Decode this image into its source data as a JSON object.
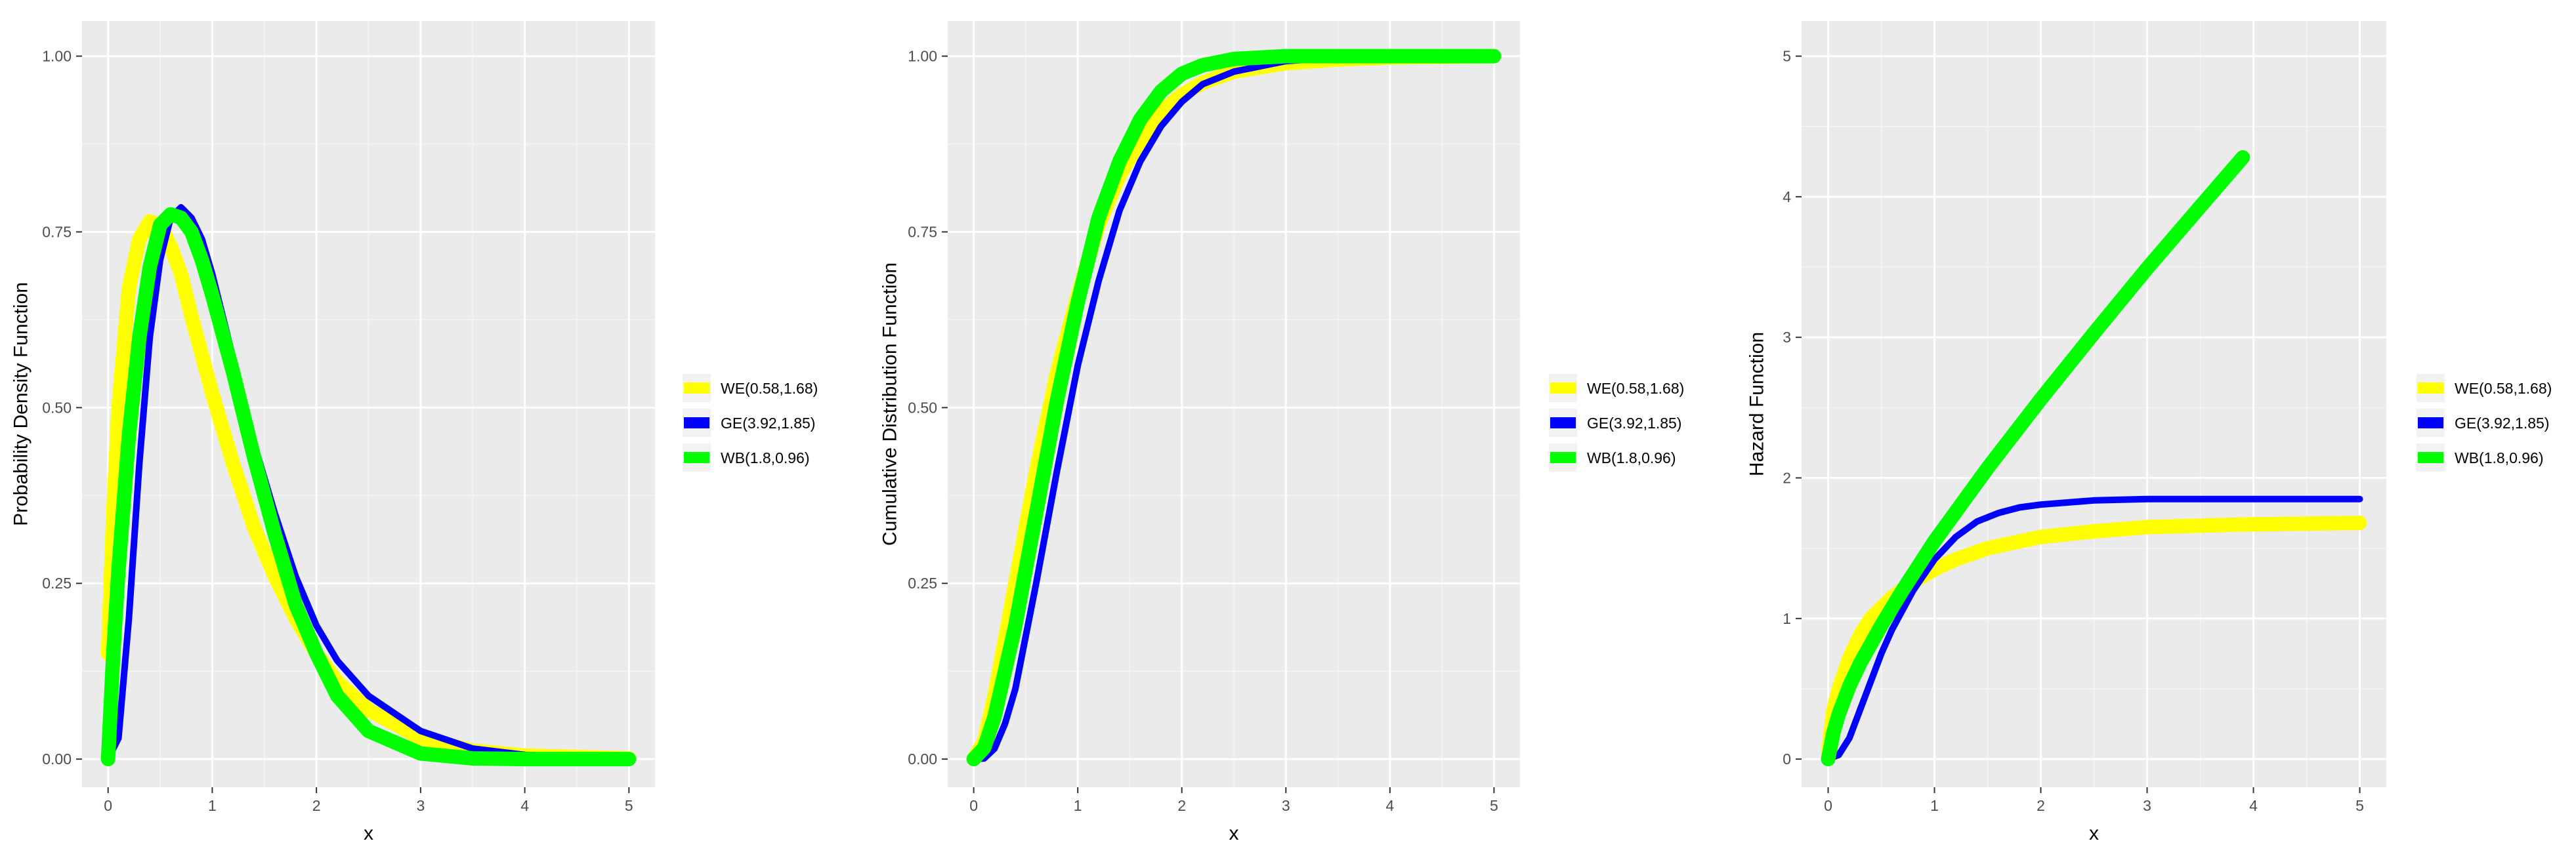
{
  "colors": {
    "panel_bg": "#ebebeb",
    "grid_major": "#ffffff",
    "grid_minor": "#f5f5f5",
    "tick": "#333333"
  },
  "legend": {
    "items": [
      {
        "label": "WE(0.58,1.68)",
        "color": "#ffff00"
      },
      {
        "label": "GE(3.92,1.85)",
        "color": "#0000ff"
      },
      {
        "label": "WB(1.8,0.96)",
        "color": "#00ff00"
      }
    ]
  },
  "chart_data": [
    {
      "type": "line",
      "xlabel": "x",
      "ylabel": "Probability Density Function",
      "xlim": [
        -0.25,
        5.25
      ],
      "ylim": [
        -0.04,
        1.05
      ],
      "xticks": [
        0,
        1,
        2,
        3,
        4,
        5
      ],
      "xtick_labels": [
        "0",
        "1",
        "2",
        "3",
        "4",
        "5"
      ],
      "yticks": [
        0,
        0.25,
        0.5,
        0.75,
        1
      ],
      "ytick_labels": [
        "0.00",
        "0.25",
        "0.50",
        "0.75",
        "1.00"
      ],
      "grid": true,
      "legend_position": "right",
      "series": [
        {
          "name": "WE(0.58,1.68)",
          "color": "#ffff00",
          "x": [
            0,
            0.05,
            0.1,
            0.2,
            0.3,
            0.4,
            0.5,
            0.6,
            0.7,
            0.8,
            1,
            1.2,
            1.4,
            1.6,
            1.8,
            2,
            2.2,
            2.5,
            3,
            3.5,
            4,
            5
          ],
          "y": [
            0.15,
            0.35,
            0.5,
            0.67,
            0.74,
            0.765,
            0.76,
            0.73,
            0.69,
            0.63,
            0.52,
            0.42,
            0.33,
            0.26,
            0.2,
            0.15,
            0.11,
            0.07,
            0.03,
            0.012,
            0.005,
            0.001
          ]
        },
        {
          "name": "GE(3.92,1.85)",
          "color": "#0000ff",
          "x": [
            0,
            0.1,
            0.2,
            0.3,
            0.4,
            0.5,
            0.6,
            0.7,
            0.8,
            0.9,
            1,
            1.2,
            1.4,
            1.6,
            1.8,
            2,
            2.2,
            2.5,
            3,
            3.5,
            4,
            5
          ],
          "y": [
            0,
            0.03,
            0.2,
            0.42,
            0.6,
            0.71,
            0.77,
            0.785,
            0.77,
            0.74,
            0.69,
            0.57,
            0.45,
            0.35,
            0.26,
            0.19,
            0.14,
            0.09,
            0.04,
            0.015,
            0.006,
            0.001
          ]
        },
        {
          "name": "WB(1.8,0.96)",
          "color": "#00ff00",
          "x": [
            0,
            0.05,
            0.1,
            0.2,
            0.3,
            0.4,
            0.5,
            0.6,
            0.7,
            0.8,
            0.9,
            1,
            1.2,
            1.4,
            1.6,
            1.8,
            2,
            2.2,
            2.5,
            3,
            3.5,
            4,
            5
          ],
          "y": [
            0,
            0.15,
            0.27,
            0.46,
            0.6,
            0.7,
            0.76,
            0.775,
            0.77,
            0.75,
            0.71,
            0.66,
            0.55,
            0.43,
            0.32,
            0.22,
            0.15,
            0.09,
            0.04,
            0.008,
            0.001,
            0,
            0
          ]
        }
      ]
    },
    {
      "type": "line",
      "xlabel": "x",
      "ylabel": "Cumulative Distribution Function",
      "xlim": [
        -0.25,
        5.25
      ],
      "ylim": [
        -0.04,
        1.05
      ],
      "xticks": [
        0,
        1,
        2,
        3,
        4,
        5
      ],
      "xtick_labels": [
        "0",
        "1",
        "2",
        "3",
        "4",
        "5"
      ],
      "yticks": [
        0,
        0.25,
        0.5,
        0.75,
        1
      ],
      "ytick_labels": [
        "0.00",
        "0.25",
        "0.50",
        "0.75",
        "1.00"
      ],
      "grid": true,
      "legend_position": "right",
      "series": [
        {
          "name": "WE(0.58,1.68)",
          "color": "#ffff00",
          "x": [
            0,
            0.1,
            0.2,
            0.4,
            0.6,
            0.8,
            1,
            1.2,
            1.4,
            1.6,
            1.8,
            2,
            2.2,
            2.5,
            3,
            3.5,
            4,
            5
          ],
          "y": [
            0,
            0.025,
            0.09,
            0.25,
            0.41,
            0.55,
            0.66,
            0.76,
            0.83,
            0.88,
            0.92,
            0.945,
            0.962,
            0.978,
            0.99,
            0.995,
            0.998,
            1
          ]
        },
        {
          "name": "GE(3.92,1.85)",
          "color": "#0000ff",
          "x": [
            0,
            0.1,
            0.2,
            0.3,
            0.4,
            0.6,
            0.8,
            1,
            1.2,
            1.4,
            1.6,
            1.8,
            2,
            2.2,
            2.5,
            3,
            3.5,
            4,
            5
          ],
          "y": [
            0,
            0.001,
            0.015,
            0.05,
            0.1,
            0.25,
            0.41,
            0.56,
            0.68,
            0.78,
            0.85,
            0.9,
            0.935,
            0.96,
            0.978,
            0.993,
            0.998,
            1,
            1
          ]
        },
        {
          "name": "WB(1.8,0.96)",
          "color": "#00ff00",
          "x": [
            0,
            0.1,
            0.2,
            0.4,
            0.6,
            0.8,
            1,
            1.2,
            1.4,
            1.6,
            1.8,
            2,
            2.2,
            2.5,
            3,
            3.5,
            4,
            5
          ],
          "y": [
            0,
            0.016,
            0.06,
            0.19,
            0.35,
            0.51,
            0.65,
            0.77,
            0.85,
            0.91,
            0.95,
            0.975,
            0.987,
            0.996,
            1,
            1,
            1,
            1
          ]
        }
      ]
    },
    {
      "type": "line",
      "xlabel": "x",
      "ylabel": "Hazard Function",
      "xlim": [
        -0.25,
        5.25
      ],
      "ylim": [
        -0.2,
        5.25
      ],
      "xticks": [
        0,
        1,
        2,
        3,
        4,
        5
      ],
      "xtick_labels": [
        "0",
        "1",
        "2",
        "3",
        "4",
        "5"
      ],
      "yticks": [
        0,
        1,
        2,
        3,
        4,
        5
      ],
      "ytick_labels": [
        "0",
        "1",
        "2",
        "3",
        "4",
        "5"
      ],
      "grid": true,
      "legend_position": "right",
      "series": [
        {
          "name": "WE(0.58,1.68)",
          "color": "#ffff00",
          "x": [
            0,
            0.05,
            0.1,
            0.2,
            0.3,
            0.4,
            0.6,
            0.8,
            1,
            1.2,
            1.5,
            2,
            2.5,
            3,
            4,
            5
          ],
          "y": [
            0.05,
            0.35,
            0.5,
            0.72,
            0.88,
            1,
            1.15,
            1.26,
            1.35,
            1.42,
            1.5,
            1.58,
            1.62,
            1.65,
            1.67,
            1.68
          ]
        },
        {
          "name": "GE(3.92,1.85)",
          "color": "#0000ff",
          "x": [
            0,
            0.1,
            0.2,
            0.3,
            0.4,
            0.5,
            0.6,
            0.8,
            1,
            1.2,
            1.4,
            1.6,
            1.8,
            2,
            2.5,
            3,
            4,
            5
          ],
          "y": [
            0,
            0.03,
            0.15,
            0.35,
            0.55,
            0.75,
            0.92,
            1.2,
            1.42,
            1.58,
            1.69,
            1.75,
            1.79,
            1.81,
            1.84,
            1.85,
            1.85,
            1.85
          ]
        },
        {
          "name": "WB(1.8,0.96)",
          "color": "#00ff00",
          "x": [
            0,
            0.05,
            0.1,
            0.2,
            0.3,
            0.5,
            0.7,
            1,
            1.5,
            2,
            2.5,
            3,
            3.5,
            3.9
          ],
          "y": [
            0,
            0.19,
            0.32,
            0.52,
            0.68,
            0.95,
            1.2,
            1.55,
            2.07,
            2.56,
            3.03,
            3.49,
            3.93,
            4.28
          ]
        }
      ]
    }
  ]
}
